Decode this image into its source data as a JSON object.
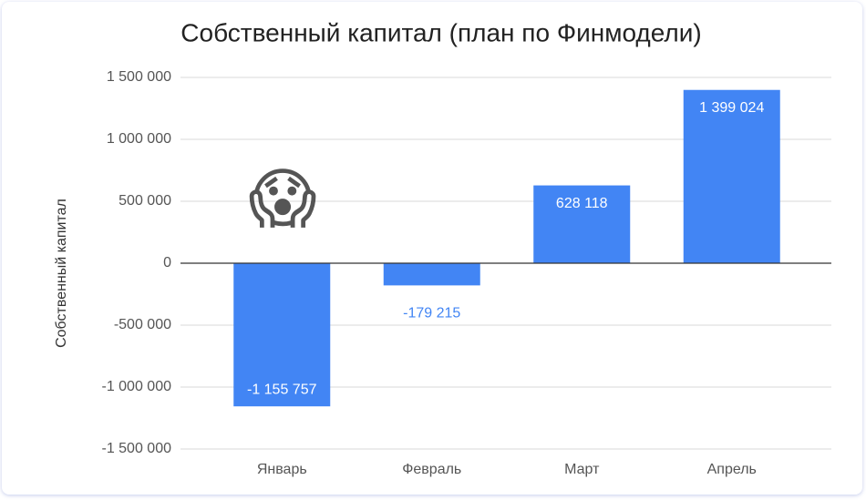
{
  "chart_data": {
    "type": "bar",
    "title": "Собственный капитал (план по Финмодели)",
    "y_label": "Собственный капитал",
    "annotation": "😱",
    "categories": [
      "Январь",
      "Февраль",
      "Март",
      "Апрель"
    ],
    "values": [
      -1155757,
      -179215,
      628118,
      1399024
    ],
    "value_labels": [
      "-1 155 757",
      "-179 215",
      "628 118",
      "1 399 024"
    ],
    "color": "#4285f4",
    "ylim": [
      -1500000,
      1500000
    ],
    "yticks": [
      {
        "value": -1500000,
        "label": "-1 500 000"
      },
      {
        "value": -1000000,
        "label": "-1 000 000"
      },
      {
        "value": -500000,
        "label": "-500 000"
      },
      0,
      {
        "value": 500000,
        "label": "500 000"
      },
      {
        "value": 1000000,
        "label": "1 000 000"
      },
      {
        "value": 1500000,
        "label": "1 500 000"
      }
    ],
    "grid": true
  }
}
